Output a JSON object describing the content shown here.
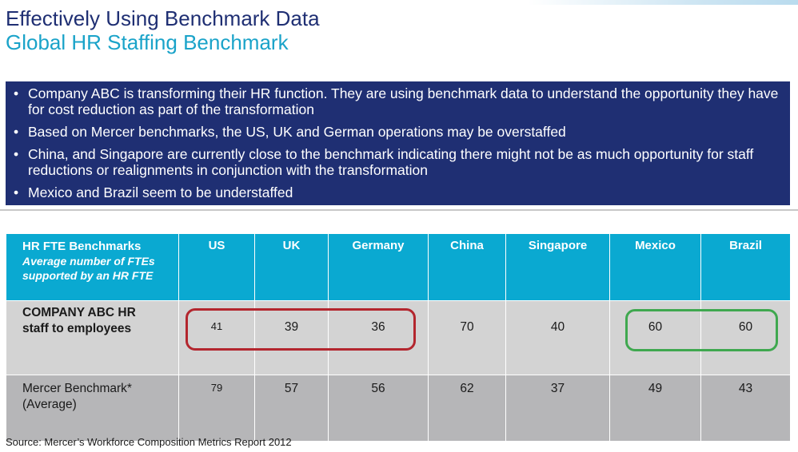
{
  "title": "Effectively Using Benchmark Data",
  "subtitle": "Global HR Staffing Benchmark",
  "bullets": [
    "Company ABC is transforming their HR function.  They are using benchmark data to understand the opportunity they have for cost reduction as part of the transformation",
    "Based on Mercer benchmarks, the US, UK and German operations may be overstaffed",
    "China, and Singapore are currently close to the benchmark indicating there might not be as much opportunity for staff reductions or realignments in conjunction with the transformation",
    "Mexico and Brazil seem to be understaffed"
  ],
  "table": {
    "header_title": "HR FTE Benchmarks",
    "header_subtitle": "Average number of FTEs supported by an HR FTE",
    "columns": [
      "US",
      "UK",
      "Germany",
      "China",
      "Singapore",
      "Mexico",
      "Brazil"
    ],
    "rows": [
      {
        "label": "COMPANY ABC HR staff to employees",
        "values": [
          "41",
          "39",
          "36",
          "70",
          "40",
          "60",
          "60"
        ]
      },
      {
        "label": "Mercer Benchmark* (Average)",
        "values": [
          "79",
          "57",
          "56",
          "62",
          "37",
          "49",
          "43"
        ]
      }
    ]
  },
  "highlights": {
    "overstaffed_color": "#b3262e",
    "understaffed_color": "#3fa84f"
  },
  "source": "Source:  Mercer’s Workforce Composition Metrics Report 2012",
  "colors": {
    "title": "#1f2f73",
    "subtitle": "#1aa3c9",
    "bullet_box": "#1f2f73",
    "table_header": "#0aa9d1",
    "row_company": "#d3d3d3",
    "row_benchmark": "#b6b6b8"
  }
}
